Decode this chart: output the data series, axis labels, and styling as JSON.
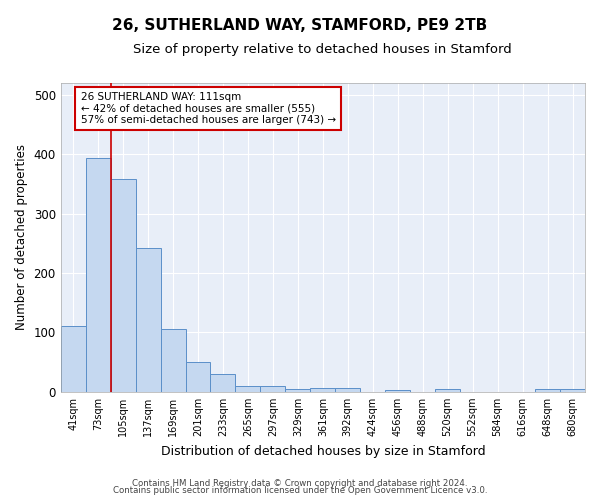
{
  "title1": "26, SUTHERLAND WAY, STAMFORD, PE9 2TB",
  "title2": "Size of property relative to detached houses in Stamford",
  "xlabel": "Distribution of detached houses by size in Stamford",
  "ylabel": "Number of detached properties",
  "categories": [
    "41sqm",
    "73sqm",
    "105sqm",
    "137sqm",
    "169sqm",
    "201sqm",
    "233sqm",
    "265sqm",
    "297sqm",
    "329sqm",
    "361sqm",
    "392sqm",
    "424sqm",
    "456sqm",
    "488sqm",
    "520sqm",
    "552sqm",
    "584sqm",
    "616sqm",
    "648sqm",
    "680sqm"
  ],
  "values": [
    111,
    393,
    358,
    243,
    105,
    50,
    30,
    10,
    10,
    5,
    7,
    7,
    0,
    3,
    0,
    4,
    0,
    0,
    0,
    4,
    4
  ],
  "bar_color": "#c5d8f0",
  "bar_edge_color": "#5b8fc9",
  "bg_color": "#e8eef8",
  "grid_color": "#ffffff",
  "vline_color": "#cc0000",
  "annotation_line1": "26 SUTHERLAND WAY: 111sqm",
  "annotation_line2": "← 42% of detached houses are smaller (555)",
  "annotation_line3": "57% of semi-detached houses are larger (743) →",
  "annotation_box_color": "#ffffff",
  "annotation_box_edge": "#cc0000",
  "footer1": "Contains HM Land Registry data © Crown copyright and database right 2024.",
  "footer2": "Contains public sector information licensed under the Open Government Licence v3.0.",
  "ylim": [
    0,
    520
  ],
  "title1_fontsize": 11,
  "title2_fontsize": 9.5,
  "vline_bar_idx": 1.5
}
